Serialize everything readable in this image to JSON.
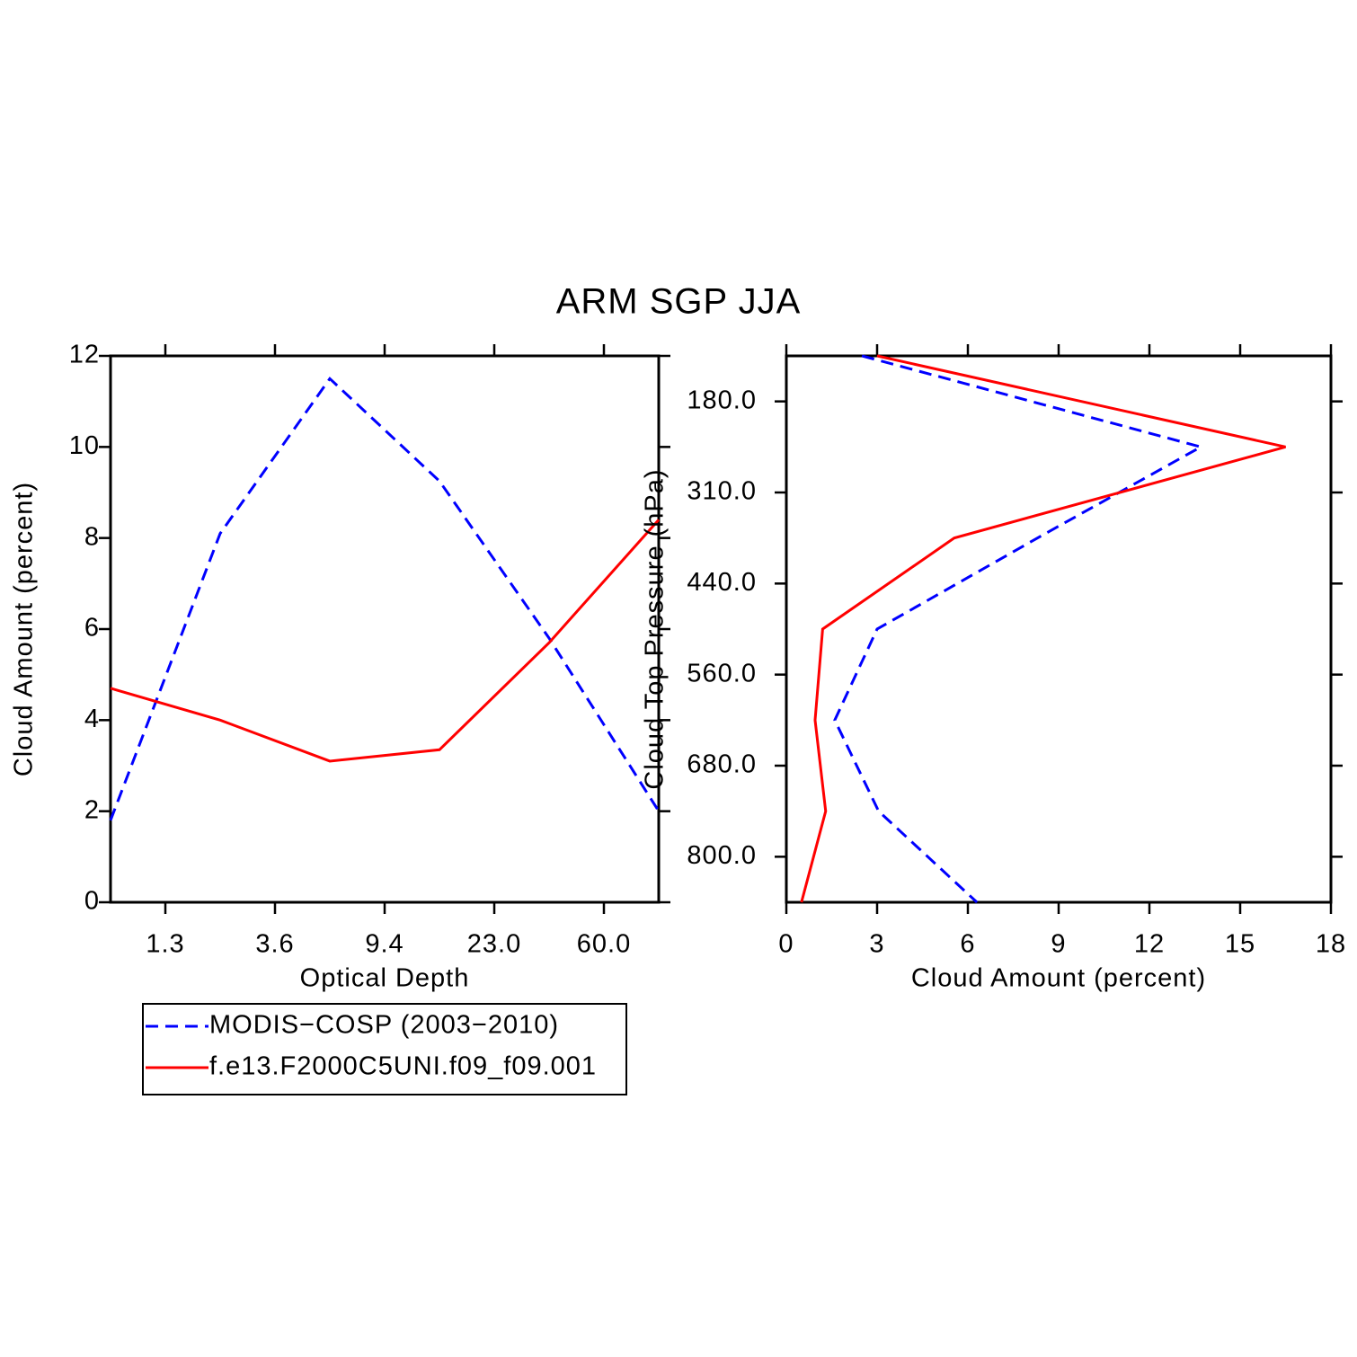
{
  "title": "ARM SGP JJA",
  "chart_data": [
    {
      "type": "line",
      "orientation": "vertical",
      "xlabel": "Optical Depth",
      "ylabel": "Cloud Amount (percent)",
      "x": [
        0,
        1,
        2,
        3,
        4,
        5
      ],
      "xlim": [
        0,
        5
      ],
      "xticks": [
        {
          "value": 0.5,
          "label": "1.3"
        },
        {
          "value": 1.5,
          "label": "3.6"
        },
        {
          "value": 2.5,
          "label": "9.4"
        },
        {
          "value": 3.5,
          "label": "23.0"
        },
        {
          "value": 4.5,
          "label": "60.0"
        }
      ],
      "ylim": [
        0,
        12
      ],
      "yticks": [
        0,
        2,
        4,
        6,
        8,
        10,
        12
      ],
      "series": [
        {
          "name": "MODIS−COSP (2003−2010)",
          "color": "#0000ff",
          "style": "dashed",
          "values": [
            1.8,
            8.1,
            11.5,
            9.25,
            5.8,
            2.0
          ]
        },
        {
          "name": "f.e13.F2000C5UNI.f09_f09.001",
          "color": "#ff0000",
          "style": "solid",
          "values": [
            4.7,
            4.0,
            3.1,
            3.35,
            5.7,
            8.4
          ]
        }
      ]
    },
    {
      "type": "line",
      "orientation": "horizontal",
      "xlabel": "Cloud Amount (percent)",
      "ylabel": "Cloud Top Pressure (hPa)",
      "y": [
        0,
        1,
        2,
        3,
        4,
        5,
        6
      ],
      "ylim": [
        6,
        0
      ],
      "yticks": [
        {
          "value": 0.5,
          "label": "180.0"
        },
        {
          "value": 1.5,
          "label": "310.0"
        },
        {
          "value": 2.5,
          "label": "440.0"
        },
        {
          "value": 3.5,
          "label": "560.0"
        },
        {
          "value": 4.5,
          "label": "680.0"
        },
        {
          "value": 5.5,
          "label": "800.0"
        }
      ],
      "xlim": [
        0,
        18
      ],
      "xticks": [
        0,
        3,
        6,
        9,
        12,
        15,
        18
      ],
      "series": [
        {
          "color": "#0000ff",
          "style": "dashed",
          "values": [
            2.5,
            13.7,
            8.3,
            3.0,
            1.6,
            3.05,
            6.3
          ]
        },
        {
          "color": "#ff0000",
          "style": "solid",
          "values": [
            3.0,
            16.5,
            5.55,
            1.2,
            0.95,
            1.3,
            0.5
          ]
        }
      ]
    }
  ]
}
